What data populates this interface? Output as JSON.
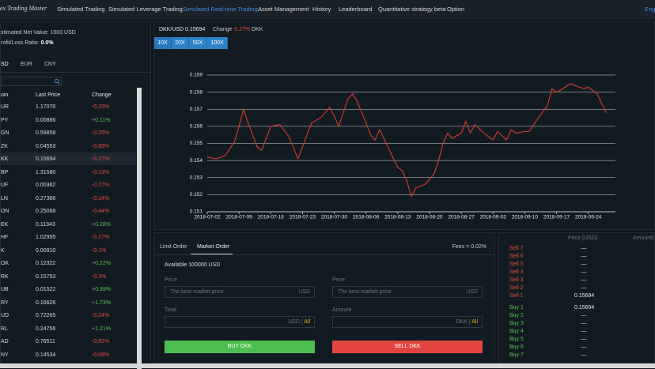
{
  "nav": {
    "logo": "ex Trading Master",
    "items": [
      "Simulated Trading",
      "Simulated Leverage Trading",
      "Simulated Real-time Trading",
      "Asset Management",
      "History",
      "Leaderboard",
      "Quantitative strategy beta",
      "Option"
    ],
    "active": 2,
    "lang": "Engli"
  },
  "account": {
    "net_value": "stimated Net Value: 1000 USD",
    "pl_label": "rofit/Loss Ratio: ",
    "pl_value": "0.0%"
  },
  "currency_tabs": [
    "SD",
    "EUR",
    "CNY"
  ],
  "table": {
    "headers": [
      "oin",
      "Last Price",
      "Change"
    ],
    "selected": 4,
    "rows": [
      [
        "UR",
        "1.17070",
        "-0.25%"
      ],
      [
        "PY",
        "0.00886",
        "+0.11%"
      ],
      [
        "GN",
        "0.59858",
        "-0.25%"
      ],
      [
        "ZK",
        "0.04553",
        "-0.65%"
      ],
      [
        "KK",
        "0.15694",
        "-0.27%"
      ],
      [
        "BP",
        "1.31580",
        "-0.13%"
      ],
      [
        "UF",
        "0.00362",
        "-0.27%"
      ],
      [
        "LN",
        "0.27366",
        "-0.14%"
      ],
      [
        "ON",
        "0.25068",
        "-0.44%"
      ],
      [
        "EK",
        "0.11343",
        "+0.28%"
      ],
      [
        "HF",
        "1.02955",
        "-0.27%"
      ],
      [
        "K",
        "0.00910",
        "-0.1%"
      ],
      [
        "OK",
        "0.12322",
        "+0.22%"
      ],
      [
        "RK",
        "0.15753",
        "-0.3%"
      ],
      [
        "UB",
        "0.01522",
        "+0.39%"
      ],
      [
        "RY",
        "0.16626",
        "+1.73%"
      ],
      [
        "UD",
        "0.72265",
        "-0.24%"
      ],
      [
        "RL",
        "0.24756",
        "+1.21%"
      ],
      [
        "AD",
        "0.76511",
        "-0.82%"
      ],
      [
        "NY",
        "0.14534",
        "-0.08%"
      ]
    ]
  },
  "chart_header": {
    "pair_price": "DKK/USD 0.15694",
    "change_label": "Change",
    "change": "-0.27%",
    "base": "DKK"
  },
  "leverage": [
    "10X",
    "20X",
    "50X",
    "100X"
  ],
  "chart_data": {
    "type": "line",
    "color": "#d93a2e",
    "grid": true,
    "x": [
      "2018-07-02",
      "2018-07-04",
      "2018-07-06",
      "2018-07-08",
      "2018-07-09",
      "2018-07-10",
      "2018-07-11",
      "2018-07-13",
      "2018-07-14",
      "2018-07-16",
      "2018-07-18",
      "2018-07-20",
      "2018-07-22",
      "2018-07-23",
      "2018-07-25",
      "2018-07-27",
      "2018-07-29",
      "2018-07-30",
      "2018-07-31",
      "2018-08-02",
      "2018-08-03",
      "2018-08-04",
      "2018-08-06",
      "2018-08-07",
      "2018-08-08",
      "2018-08-09",
      "2018-08-11",
      "2018-08-13",
      "2018-08-14",
      "2018-08-15",
      "2018-08-16",
      "2018-08-17",
      "2018-08-19",
      "2018-08-21",
      "2018-08-22",
      "2018-08-23",
      "2018-08-24",
      "2018-08-25",
      "2018-08-27",
      "2018-08-28",
      "2018-08-29",
      "2018-08-30",
      "2018-09-01",
      "2018-09-03",
      "2018-09-04",
      "2018-09-06",
      "2018-09-07",
      "2018-09-08",
      "2018-09-10",
      "2018-09-11",
      "2018-09-13",
      "2018-09-15",
      "2018-09-16",
      "2018-09-17",
      "2018-09-19",
      "2018-09-20",
      "2018-09-21",
      "2018-09-23",
      "2018-09-24",
      "2018-09-26",
      "2018-09-27",
      "2018-09-28"
    ],
    "values": [
      0.1542,
      0.1541,
      0.1543,
      0.1551,
      0.156,
      0.157,
      0.1562,
      0.1548,
      0.1546,
      0.156,
      0.1561,
      0.1554,
      0.1541,
      0.1548,
      0.1562,
      0.1565,
      0.1571,
      0.1566,
      0.156,
      0.1576,
      0.1579,
      0.1575,
      0.1562,
      0.1555,
      0.1552,
      0.1558,
      0.1547,
      0.1536,
      0.1534,
      0.1528,
      0.1519,
      0.1524,
      0.1526,
      0.1532,
      0.154,
      0.155,
      0.1556,
      0.1553,
      0.1556,
      0.1563,
      0.1556,
      0.1561,
      0.1556,
      0.1552,
      0.1557,
      0.1552,
      0.1558,
      0.1556,
      0.1557,
      0.1557,
      0.1565,
      0.1572,
      0.1582,
      0.158,
      0.1583,
      0.1585,
      0.1584,
      0.1582,
      0.1583,
      0.1579,
      0.1573,
      0.1568
    ],
    "xlim": [
      "2018-07-02",
      "2018-09-30"
    ],
    "xticks": [
      "2018-07-02",
      "2018-07-09",
      "2018-07-16",
      "2018-07-23",
      "2018-07-30",
      "2018-08-06",
      "2018-08-13",
      "2018-08-20",
      "2018-08-27",
      "2018-09-03",
      "2018-09-10",
      "2018-09-17",
      "2018-09-24"
    ],
    "ylim": [
      0.151,
      0.159
    ],
    "yticks": [
      0.151,
      0.152,
      0.153,
      0.154,
      0.155,
      0.156,
      0.157,
      0.158,
      0.159
    ]
  },
  "order_form": {
    "tabs": [
      "Limit Order",
      "Market Order"
    ],
    "fees": "Fees = 0.02%",
    "available": "Available 100000 USD",
    "buy": {
      "price_label": "Price",
      "price_placeholder": "The best market price",
      "price_unit": "USD",
      "total_label": "Total",
      "total_unit": "USD",
      "sep": "|",
      "all": "All",
      "button": "BUY DKK"
    },
    "sell": {
      "price_label": "Price",
      "price_placeholder": "The best market price",
      "price_unit": "USD",
      "amount_label": "Amount",
      "amount_unit": "DKK",
      "sep": "|",
      "all": "All",
      "button": "SELL DKK"
    }
  },
  "order_book": {
    "headers": [
      "Price (USD)",
      "Amount("
    ],
    "sells": [
      {
        "label": "Sell 7",
        "price": "—"
      },
      {
        "label": "Sell 6",
        "price": "—"
      },
      {
        "label": "Sell 5",
        "price": "—"
      },
      {
        "label": "Sell 4",
        "price": "—"
      },
      {
        "label": "Sell 3",
        "price": "—"
      },
      {
        "label": "Sell 2",
        "price": "—"
      },
      {
        "label": "Sell 1",
        "price": "0.15694"
      }
    ],
    "buys": [
      {
        "label": "Buy 1",
        "price": "0.15694"
      },
      {
        "label": "Buy 2",
        "price": "—"
      },
      {
        "label": "Buy 3",
        "price": "—"
      },
      {
        "label": "Buy 4",
        "price": "—"
      },
      {
        "label": "Buy 5",
        "price": "—"
      },
      {
        "label": "Buy 6",
        "price": "—"
      },
      {
        "label": "Buy 7",
        "price": "—"
      }
    ]
  }
}
